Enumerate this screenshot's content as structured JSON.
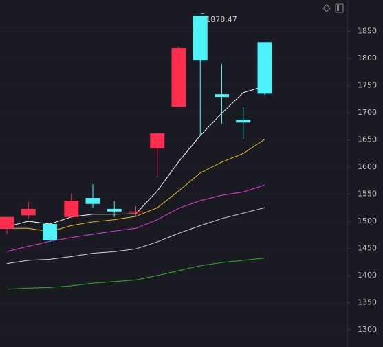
{
  "chart_data": {
    "type": "candlestick",
    "annotation": "1878.47",
    "open": [
      1486,
      1511,
      1495,
      1508,
      1543,
      1523,
      1516,
      1634,
      1711,
      1878.47,
      1734,
      1687,
      1830
    ],
    "high": [
      1508,
      1537,
      1499,
      1551,
      1568,
      1537,
      1528,
      1662,
      1822,
      1878.47,
      1790,
      1710,
      1830
    ],
    "low": [
      1477,
      1505,
      1456,
      1508,
      1525,
      1508,
      1510,
      1581,
      1711,
      1657,
      1680,
      1651,
      1733
    ],
    "close": [
      1508,
      1523,
      1465,
      1538,
      1532,
      1518,
      1518,
      1662,
      1819,
      1796,
      1729,
      1682,
      1735
    ],
    "up_color": "#ff2d4e",
    "down_color": "#4df2f8",
    "overlays": [
      {
        "color": "#ffffff",
        "values": [
          1490,
          1500,
          1495,
          1508,
          1513,
          1513,
          1514,
          1556,
          1610,
          1658,
          1699,
          1737,
          1749
        ]
      },
      {
        "color": "#e8c020",
        "values": [
          1487,
          1487,
          1481,
          1492,
          1499,
          1503,
          1509,
          1525,
          1556,
          1589,
          1609,
          1625,
          1651
        ]
      },
      {
        "color": "#e040e0",
        "values": [
          1444,
          1454,
          1463,
          1470,
          1476,
          1482,
          1487,
          1503,
          1524,
          1538,
          1548,
          1554,
          1567
        ]
      },
      {
        "color": "#d8d8d8",
        "values": [
          1422,
          1428,
          1430,
          1435,
          1441,
          1444,
          1449,
          1462,
          1478,
          1492,
          1505,
          1515,
          1525
        ]
      },
      {
        "color": "#30b030",
        "values": [
          1375,
          1377,
          1378,
          1381,
          1386,
          1389,
          1392,
          1400,
          1409,
          1418,
          1424,
          1428,
          1432
        ]
      }
    ],
    "ylim": [
      1268.4,
      1907.6
    ],
    "yticks": [
      1300,
      1350,
      1400,
      1450,
      1500,
      1550,
      1600,
      1650,
      1700,
      1750,
      1800,
      1850
    ],
    "grid": true
  }
}
